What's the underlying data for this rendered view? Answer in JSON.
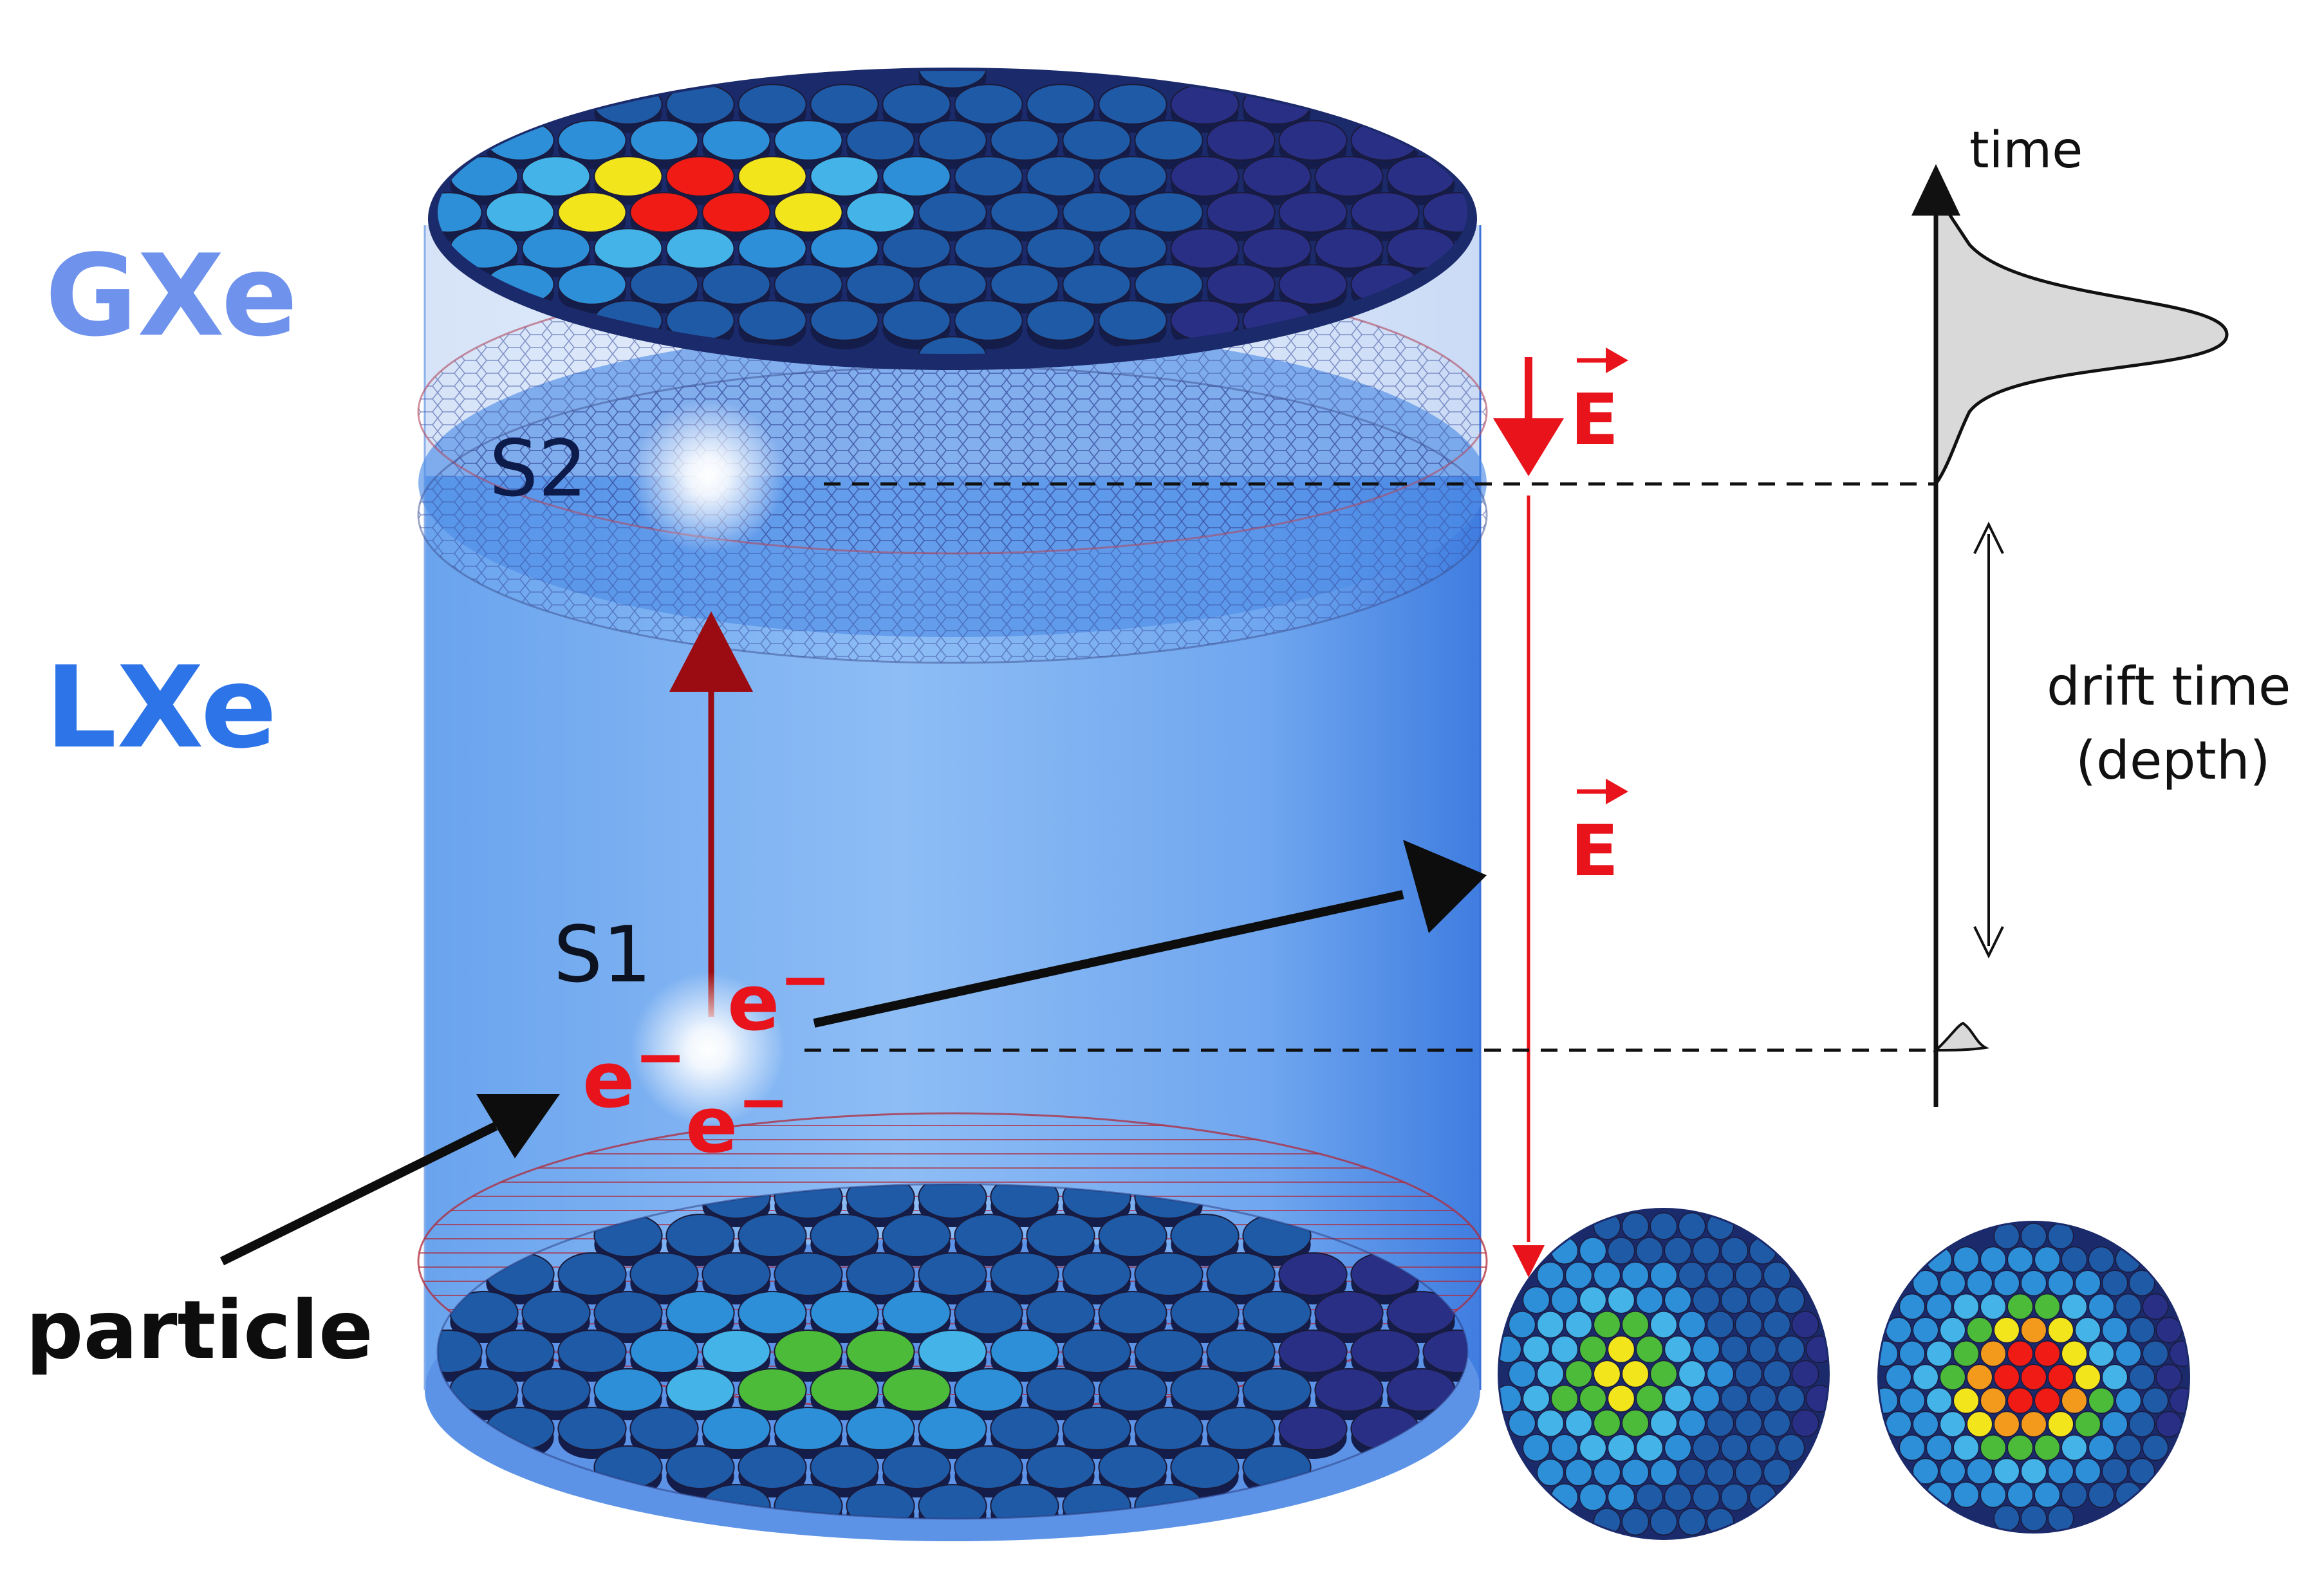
{
  "labels": {
    "gxe": "GXe",
    "lxe": "LXe",
    "s2": "S2",
    "s1": "S1",
    "electron": "e",
    "electron_charge": "−",
    "field": "E",
    "particle": "particle",
    "time": "time",
    "drift_time": "drift time",
    "depth": "(depth)"
  },
  "colors": {
    "gxe": "#6f93ec",
    "lxe": "#2c74e8",
    "field": "#e8131b",
    "drift_arrow": "#9b0c12",
    "ink": "#111111",
    "pmt_scale": [
      "#2a2f86",
      "#1f5aa6",
      "#2d8fd8",
      "#43b3e8",
      "#4dbb3a",
      "#f3e51c",
      "#f39a1c",
      "#ef1b14"
    ]
  },
  "arrays": {
    "top": {
      "hit_fraction_x": 0.26,
      "hit_fraction_y": 0.45
    },
    "bottom": {
      "hit_fraction_x": 0.4,
      "hit_fraction_y": 0.55
    }
  }
}
